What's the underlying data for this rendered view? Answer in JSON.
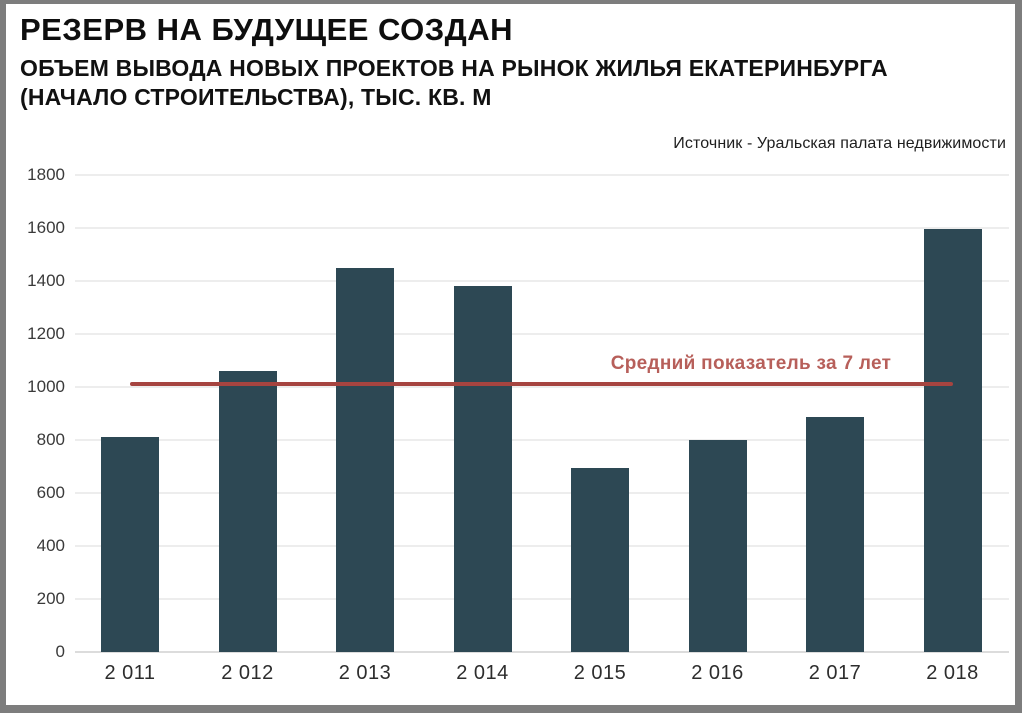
{
  "frame": {
    "border_color": "#7d7d7d",
    "background": "#ffffff"
  },
  "header": {
    "title": "РЕЗЕРВ НА БУДУЩЕЕ СОЗДАН",
    "subtitle_line1": "ОБЪЕМ ВЫВОДА НОВЫХ ПРОЕКТОВ НА РЫНОК ЖИЛЬЯ ЕКАТЕРИНБУРГА",
    "subtitle_line2": "(НАЧАЛО СТРОИТЕЛЬСТВА), ТЫС. КВ. М",
    "source": "Источник - Уральская палата недвижимости"
  },
  "chart_data": {
    "type": "bar",
    "title": "РЕЗЕРВ НА БУДУЩЕЕ СОЗДАН",
    "subtitle": "ОБЪЕМ ВЫВОДА НОВЫХ ПРОЕКТОВ НА РЫНОК ЖИЛЬЯ ЕКАТЕРИНБУРГА (НАЧАЛО СТРОИТЕЛЬСТВА), ТЫС. КВ. М",
    "source": "Источник - Уральская палата недвижимости",
    "categories": [
      "2 011",
      "2 012",
      "2 013",
      "2 014",
      "2 015",
      "2 016",
      "2 017",
      "2 018"
    ],
    "values": [
      810,
      1060,
      1450,
      1380,
      695,
      800,
      885,
      1595
    ],
    "bar_color": "#2d4854",
    "ylim": [
      0,
      1800
    ],
    "yticks": [
      0,
      200,
      400,
      600,
      800,
      1000,
      1200,
      1400,
      1600,
      1800
    ],
    "grid": true,
    "legend_position": "none",
    "xlabel": "",
    "ylabel": "",
    "average_line": {
      "value": 1012,
      "label": "Средний показатель за 7  лет",
      "line_color": "#a64440",
      "label_color": "#b75f5a"
    }
  }
}
